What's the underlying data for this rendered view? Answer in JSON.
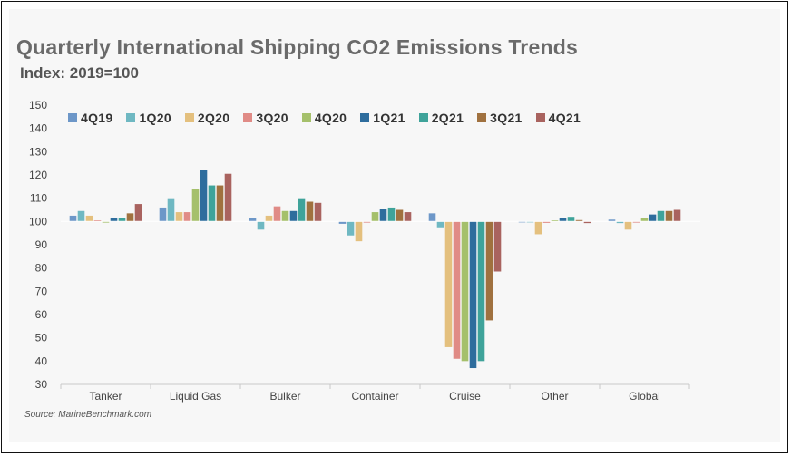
{
  "title": "Quarterly International Shipping CO2 Emissions Trends",
  "subtitle": "Index: 2019=100",
  "source": "Source: MarineBenchmark.com",
  "chart_data": {
    "type": "bar",
    "title": "Quarterly International Shipping CO2 Emissions Trends",
    "subtitle": "Index: 2019=100",
    "xlabel": "",
    "ylabel": "",
    "ylim": [
      30,
      150
    ],
    "yticks": [
      30,
      40,
      50,
      60,
      70,
      80,
      90,
      100,
      110,
      120,
      130,
      140,
      150
    ],
    "baseline": 100,
    "grid": false,
    "legend_position": "top",
    "categories": [
      "Tanker",
      "Liquid Gas",
      "Bulker",
      "Container",
      "Cruise",
      "Other",
      "Global"
    ],
    "series": [
      {
        "name": "4Q19",
        "color": "#6d97c8",
        "values": [
          102.5,
          106,
          101.5,
          99,
          103.5,
          99.6,
          100.8
        ]
      },
      {
        "name": "1Q20",
        "color": "#6fb8c2",
        "values": [
          104.5,
          110,
          96.5,
          94,
          97.5,
          99.6,
          99.3
        ]
      },
      {
        "name": "2Q20",
        "color": "#e4c07e",
        "values": [
          102.5,
          104,
          102.5,
          91.5,
          46,
          94.5,
          96.5
        ]
      },
      {
        "name": "3Q20",
        "color": "#e08b86",
        "values": [
          100.5,
          104,
          106.5,
          99.5,
          41,
          99.4,
          99.5
        ]
      },
      {
        "name": "4Q20",
        "color": "#a5c06b",
        "values": [
          99.5,
          114,
          104.5,
          104,
          40,
          100.5,
          101.5
        ]
      },
      {
        "name": "1Q21",
        "color": "#2e6d9d",
        "values": [
          101.5,
          122,
          104.5,
          105.5,
          37,
          101.5,
          103
        ]
      },
      {
        "name": "2Q21",
        "color": "#3fa39a",
        "values": [
          101.5,
          115.5,
          110,
          106,
          40,
          102,
          104.5
        ]
      },
      {
        "name": "3Q21",
        "color": "#a0713f",
        "values": [
          103.5,
          115.5,
          108.5,
          105,
          57.5,
          100.6,
          104.5
        ]
      },
      {
        "name": "4Q21",
        "color": "#a9635f",
        "values": [
          107.5,
          120.5,
          108,
          104,
          78.5,
          99.3,
          105
        ]
      }
    ]
  }
}
